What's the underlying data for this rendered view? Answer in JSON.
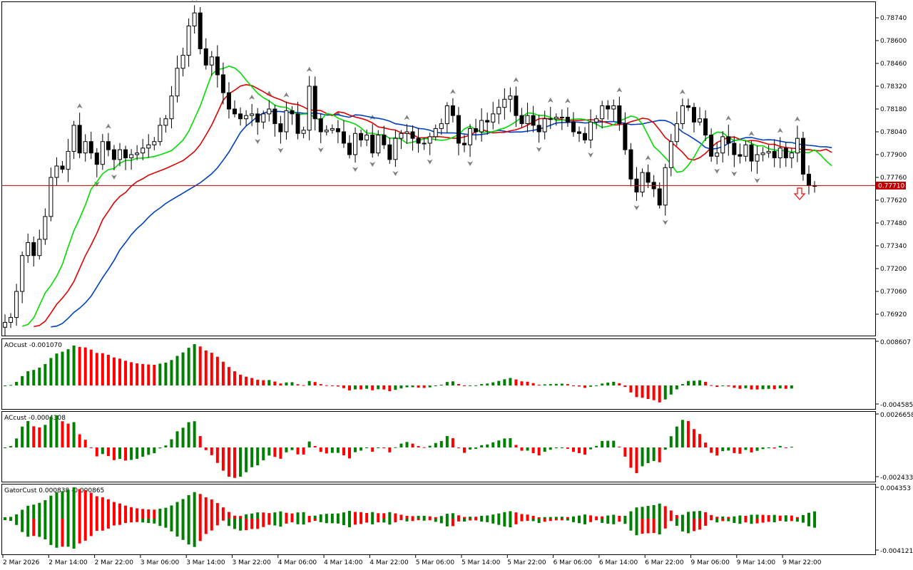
{
  "colors": {
    "bull_bar": "#008000",
    "bear_bar": "#ff0000",
    "ma_fast": "#00dd00",
    "ma_mid": "#e00000",
    "ma_slow": "#0040c0",
    "price_line": "#c00000",
    "price_tag_bg": "#c00000",
    "fractal": "#808080",
    "signal_arrow": "#ff0000"
  },
  "price_pane": {
    "y_ticks": [
      "0.78740",
      "0.78600",
      "0.78460",
      "0.78320",
      "0.78180",
      "0.78040",
      "0.77900",
      "0.77760",
      "0.77620",
      "0.77480",
      "0.77340",
      "0.77200",
      "0.77060",
      "0.76920"
    ],
    "current_price": "0.77710"
  },
  "ao_pane": {
    "label": "AOcust -0.001070",
    "y_max": "0.008607",
    "y_min": "-0.004585"
  },
  "ac_pane": {
    "label": "ACcust -0.0004308",
    "y_max": "0.0026658",
    "y_min": "-0.0024338"
  },
  "gator_pane": {
    "label": "GatorCust 0.000838 -0.000865",
    "y_max": "0.004353",
    "y_min": "-0.004121"
  },
  "time_axis": [
    "2 Mar 2026",
    "2 Mar 14:00",
    "2 Mar 22:00",
    "3 Mar 06:00",
    "3 Mar 14:00",
    "3 Mar 22:00",
    "4 Mar 06:00",
    "4 Mar 14:00",
    "4 Mar 22:00",
    "5 Mar 06:00",
    "5 Mar 14:00",
    "5 Mar 22:00",
    "6 Mar 06:00",
    "6 Mar 14:00",
    "6 Mar 22:00",
    "9 Mar 06:00",
    "9 Mar 14:00",
    "9 Mar 22:00"
  ],
  "chart_data": {
    "type": "candlestick",
    "symbol_price_axis": {
      "min": 0.7686,
      "max": 0.788
    },
    "closes": [
      0.7687,
      0.769,
      0.7706,
      0.7728,
      0.7736,
      0.7728,
      0.7738,
      0.7752,
      0.7776,
      0.7783,
      0.7781,
      0.7792,
      0.7808,
      0.7791,
      0.7798,
      0.7791,
      0.7784,
      0.7798,
      0.7793,
      0.7787,
      0.7793,
      0.7788,
      0.779,
      0.7791,
      0.7794,
      0.7796,
      0.7798,
      0.7808,
      0.7812,
      0.7826,
      0.7843,
      0.7851,
      0.7869,
      0.7877,
      0.7855,
      0.7845,
      0.785,
      0.7839,
      0.7828,
      0.7818,
      0.7815,
      0.7812,
      0.7814,
      0.7815,
      0.781,
      0.7815,
      0.7818,
      0.7809,
      0.7804,
      0.7817,
      0.7815,
      0.7803,
      0.7805,
      0.7832,
      0.7812,
      0.7804,
      0.7805,
      0.7806,
      0.7804,
      0.7797,
      0.779,
      0.7803,
      0.7799,
      0.7802,
      0.7791,
      0.7802,
      0.7796,
      0.7787,
      0.78,
      0.7803,
      0.7804,
      0.78,
      0.7797,
      0.7797,
      0.7801,
      0.7806,
      0.7809,
      0.782,
      0.7814,
      0.7797,
      0.7796,
      0.7806,
      0.7804,
      0.7811,
      0.781,
      0.7815,
      0.7819,
      0.7824,
      0.7826,
      0.7814,
      0.7809,
      0.7814,
      0.7808,
      0.7804,
      0.7812,
      0.7812,
      0.7813,
      0.7813,
      0.781,
      0.7804,
      0.7803,
      0.7799,
      0.781,
      0.7812,
      0.782,
      0.7818,
      0.782,
      0.7809,
      0.7793,
      0.7775,
      0.7767,
      0.7779,
      0.7773,
      0.7769,
      0.7759,
      0.7782,
      0.7798,
      0.7809,
      0.782,
      0.7819,
      0.781,
      0.7812,
      0.7802,
      0.7789,
      0.7791,
      0.7801,
      0.7797,
      0.779,
      0.7789,
      0.7796,
      0.7786,
      0.779,
      0.7791,
      0.7792,
      0.7788,
      0.7794,
      0.7788,
      0.7791,
      0.78,
      0.7778,
      0.7771,
      0.7771
    ]
  }
}
